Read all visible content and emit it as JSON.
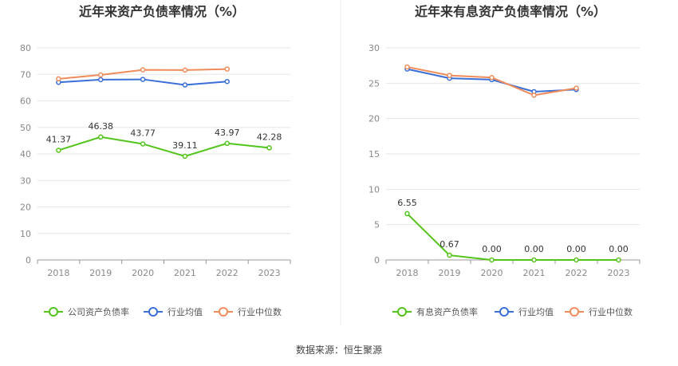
{
  "chart_data": [
    {
      "type": "line",
      "title": "近年来资产负债率情况（%）",
      "categories": [
        "2018",
        "2019",
        "2020",
        "2021",
        "2022",
        "2023"
      ],
      "ylim": [
        0,
        80
      ],
      "yticks": [
        0,
        10,
        20,
        30,
        40,
        50,
        60,
        70,
        80
      ],
      "series": [
        {
          "name": "公司资产负债率",
          "color": "#52c41a",
          "values": [
            41.37,
            46.38,
            43.77,
            39.11,
            43.97,
            42.28
          ],
          "labels": [
            "41.37",
            "46.38",
            "43.77",
            "39.11",
            "43.97",
            "42.28"
          ]
        },
        {
          "name": "行业均值",
          "color": "#3a6fd8",
          "values": [
            67.0,
            68.0,
            68.1,
            66.0,
            67.3,
            null
          ]
        },
        {
          "name": "行业中位数",
          "color": "#f08c5a",
          "values": [
            68.3,
            69.8,
            71.7,
            71.6,
            72.0,
            null
          ]
        }
      ]
    },
    {
      "type": "line",
      "title": "近年来有息资产负债率情况（%）",
      "categories": [
        "2018",
        "2019",
        "2020",
        "2021",
        "2022",
        "2023"
      ],
      "ylim": [
        0,
        30
      ],
      "yticks": [
        0,
        5,
        10,
        15,
        20,
        25,
        30
      ],
      "series": [
        {
          "name": "有息资产负债率",
          "color": "#52c41a",
          "values": [
            6.55,
            0.67,
            0.0,
            0.0,
            0.0,
            0.0
          ],
          "labels": [
            "6.55",
            "0.67",
            "0.00",
            "0.00",
            "0.00",
            "0.00"
          ]
        },
        {
          "name": "行业均值",
          "color": "#3a6fd8",
          "values": [
            27.0,
            25.7,
            25.5,
            23.8,
            24.1,
            null
          ]
        },
        {
          "name": "行业中位数",
          "color": "#f08c5a",
          "values": [
            27.3,
            26.1,
            25.8,
            23.3,
            24.3,
            null
          ]
        }
      ]
    }
  ],
  "footer": {
    "source": "数据来源：恒生聚源"
  }
}
